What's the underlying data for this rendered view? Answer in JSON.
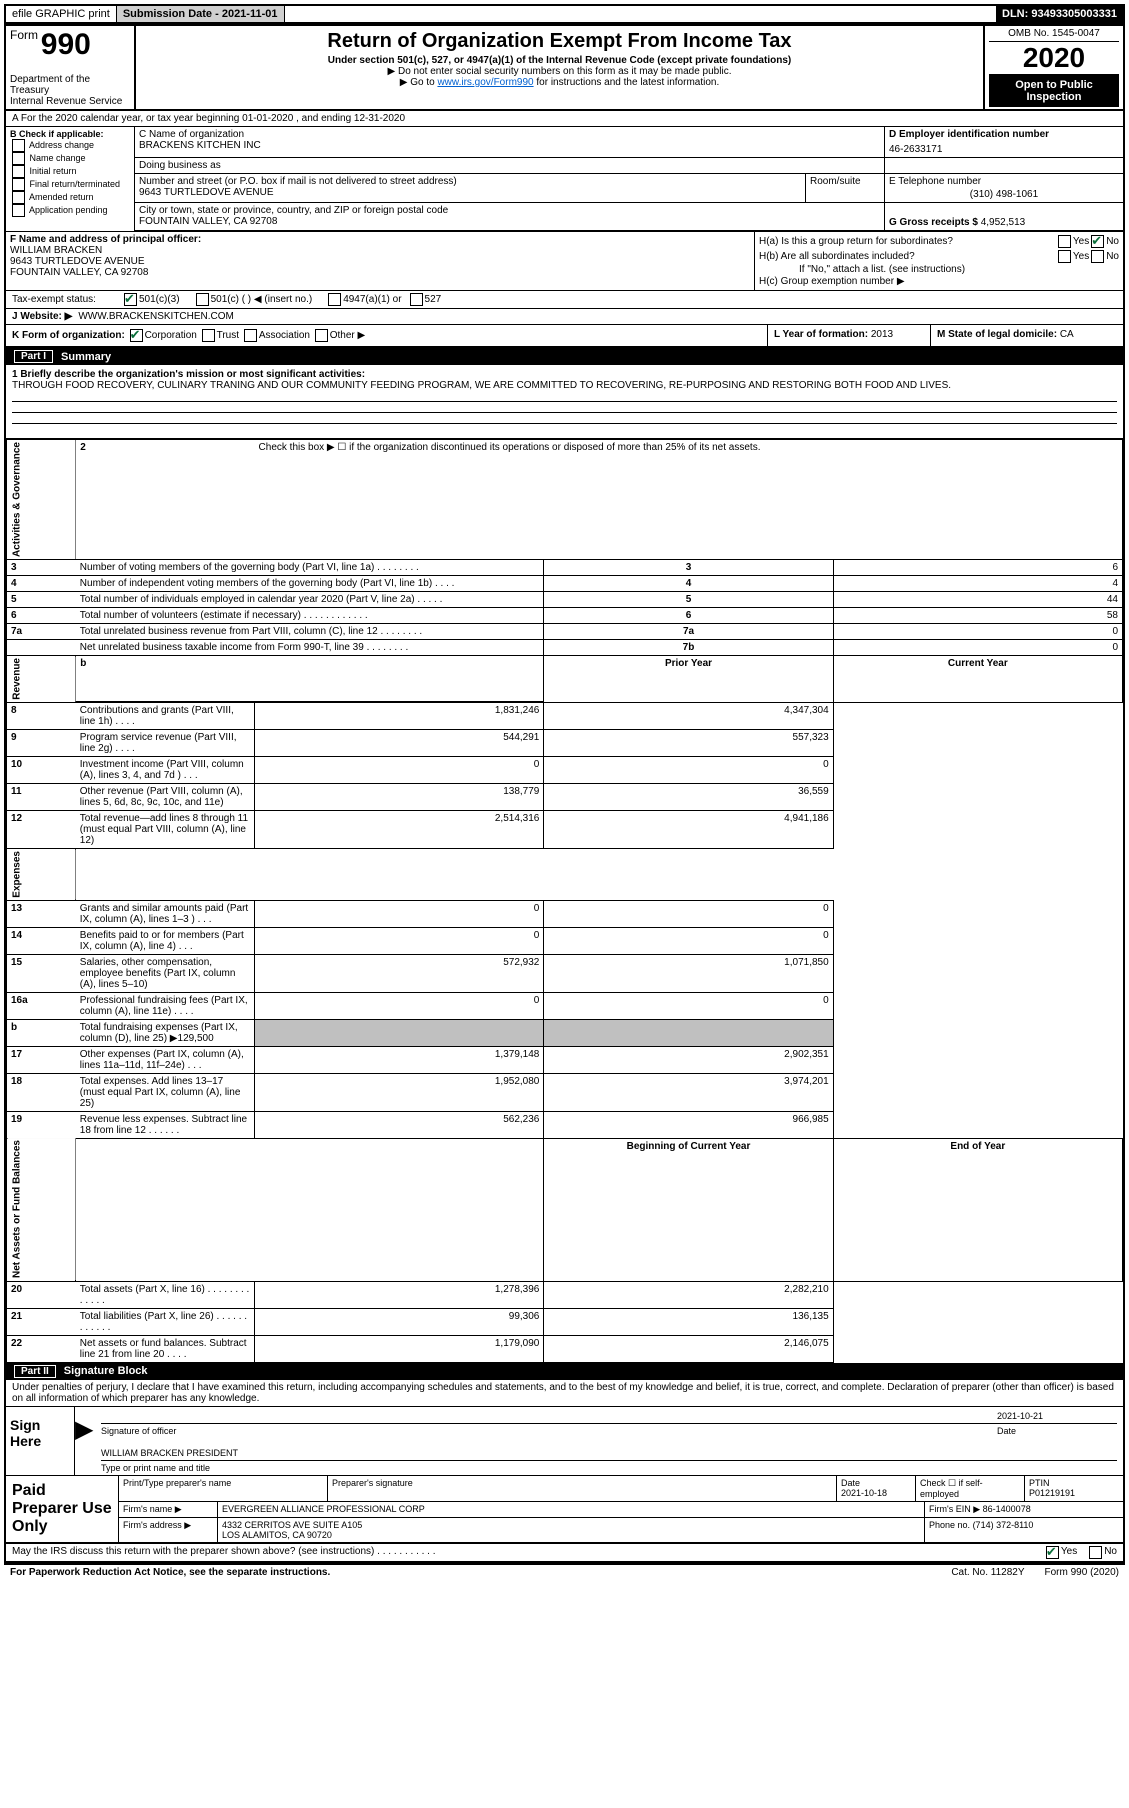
{
  "topbar": {
    "efile": "efile GRAPHIC print",
    "submission_label": "Submission Date - 2021-11-01",
    "dln": "DLN: 93493305003331"
  },
  "header": {
    "form_label": "Form",
    "form_number": "990",
    "dept": "Department of the Treasury\nInternal Revenue Service",
    "title": "Return of Organization Exempt From Income Tax",
    "subtitle": "Under section 501(c), 527, or 4947(a)(1) of the Internal Revenue Code (except private foundations)",
    "note1": "▶ Do not enter social security numbers on this form as it may be made public.",
    "note2_prefix": "▶ Go to ",
    "note2_link": "www.irs.gov/Form990",
    "note2_suffix": " for instructions and the latest information.",
    "omb": "OMB No. 1545-0047",
    "year": "2020",
    "open_public": "Open to Public Inspection"
  },
  "section_a": "A For the 2020 calendar year, or tax year beginning 01-01-2020   , and ending 12-31-2020",
  "col_b": {
    "label": "B Check if applicable:",
    "items": [
      "Address change",
      "Name change",
      "Initial return",
      "Final return/terminated",
      "Amended return",
      "Application pending"
    ]
  },
  "org": {
    "c_label": "C Name of organization",
    "name": "BRACKENS KITCHEN INC",
    "dba_label": "Doing business as",
    "addr_label": "Number and street (or P.O. box if mail is not delivered to street address)",
    "addr": "9643 TURTLEDOVE AVENUE",
    "room_label": "Room/suite",
    "city_label": "City or town, state or province, country, and ZIP or foreign postal code",
    "city": "FOUNTAIN VALLEY, CA  92708"
  },
  "ein": {
    "label": "D Employer identification number",
    "value": "46-2633171"
  },
  "phone": {
    "label": "E Telephone number",
    "value": "(310) 498-1061"
  },
  "gross": {
    "label": "G Gross receipts $",
    "value": "4,952,513"
  },
  "officer": {
    "label": "F Name and address of principal officer:",
    "name": "WILLIAM BRACKEN",
    "addr1": "9643 TURTLEDOVE AVENUE",
    "addr2": "FOUNTAIN VALLEY, CA  92708"
  },
  "h": {
    "a_label": "H(a)  Is this a group return for subordinates?",
    "b_label": "H(b)  Are all subordinates included?",
    "b_note": "If \"No,\" attach a list. (see instructions)",
    "c_label": "H(c)  Group exemption number ▶",
    "yes": "Yes",
    "no": "No"
  },
  "tax_status": {
    "label": "Tax-exempt status:",
    "opt1": "501(c)(3)",
    "opt2": "501(c) (  ) ◀ (insert no.)",
    "opt3": "4947(a)(1) or",
    "opt4": "527"
  },
  "website": {
    "label": "J   Website: ▶",
    "value": "WWW.BRACKENSKITCHEN.COM"
  },
  "k": {
    "label": "K Form of organization:",
    "opt1": "Corporation",
    "opt2": "Trust",
    "opt3": "Association",
    "opt4": "Other ▶",
    "l_label": "L Year of formation:",
    "l_value": "2013",
    "m_label": "M State of legal domicile:",
    "m_value": "CA"
  },
  "parts": {
    "p1": "Part I",
    "p1_title": "Summary",
    "p2": "Part II",
    "p2_title": "Signature Block"
  },
  "mission": {
    "q1": "1   Briefly describe the organization's mission or most significant activities:",
    "text": "THROUGH FOOD RECOVERY, CULINARY TRANING AND OUR COMMUNITY FEEDING PROGRAM, WE ARE COMMITTED TO RECOVERING, RE-PURPOSING AND RESTORING BOTH FOOD AND LIVES."
  },
  "summary": {
    "side_labels": [
      "Activities & Governance",
      "Revenue",
      "Expenses",
      "Net Assets or Fund Balances"
    ],
    "line2": "Check this box ▶ ☐  if the organization discontinued its operations or disposed of more than 25% of its net assets.",
    "rows_ag": [
      {
        "num": "3",
        "desc": "Number of voting members of the governing body (Part VI, line 1a)  .   .   .   .   .   .   .   .",
        "box": "3",
        "val": "6"
      },
      {
        "num": "4",
        "desc": "Number of independent voting members of the governing body (Part VI, line 1b)   .   .   .   .",
        "box": "4",
        "val": "4"
      },
      {
        "num": "5",
        "desc": "Total number of individuals employed in calendar year 2020 (Part V, line 2a)  .   .   .   .   .",
        "box": "5",
        "val": "44"
      },
      {
        "num": "6",
        "desc": "Total number of volunteers (estimate if necessary)    .   .   .   .   .   .   .   .   .   .   .   .",
        "box": "6",
        "val": "58"
      },
      {
        "num": "7a",
        "desc": "Total unrelated business revenue from Part VIII, column (C), line 12  .   .   .   .   .   .   .   .",
        "box": "7a",
        "val": "0"
      },
      {
        "num": "",
        "desc": "Net unrelated business taxable income from Form 990-T, line 39    .   .   .   .   .   .   .   .",
        "box": "7b",
        "val": "0"
      }
    ],
    "hdr_b": "b",
    "hdr_prior": "Prior Year",
    "hdr_current": "Current Year",
    "rows_rev": [
      {
        "num": "8",
        "desc": "Contributions and grants (Part VIII, line 1h)  .   .   .   .",
        "prior": "1,831,246",
        "curr": "4,347,304"
      },
      {
        "num": "9",
        "desc": "Program service revenue (Part VIII, line 2g)  .   .   .   .",
        "prior": "544,291",
        "curr": "557,323"
      },
      {
        "num": "10",
        "desc": "Investment income (Part VIII, column (A), lines 3, 4, and 7d )   .   .   .",
        "prior": "0",
        "curr": "0"
      },
      {
        "num": "11",
        "desc": "Other revenue (Part VIII, column (A), lines 5, 6d, 8c, 9c, 10c, and 11e)",
        "prior": "138,779",
        "curr": "36,559"
      },
      {
        "num": "12",
        "desc": "Total revenue—add lines 8 through 11 (must equal Part VIII, column (A), line 12)",
        "prior": "2,514,316",
        "curr": "4,941,186"
      }
    ],
    "rows_exp": [
      {
        "num": "13",
        "desc": "Grants and similar amounts paid (Part IX, column (A), lines 1–3 )  .   .   .",
        "prior": "0",
        "curr": "0"
      },
      {
        "num": "14",
        "desc": "Benefits paid to or for members (Part IX, column (A), line 4)  .   .   .",
        "prior": "0",
        "curr": "0"
      },
      {
        "num": "15",
        "desc": "Salaries, other compensation, employee benefits (Part IX, column (A), lines 5–10)",
        "prior": "572,932",
        "curr": "1,071,850"
      },
      {
        "num": "16a",
        "desc": "Professional fundraising fees (Part IX, column (A), line 11e)  .   .   .   .",
        "prior": "0",
        "curr": "0"
      },
      {
        "num": "b",
        "desc": "Total fundraising expenses (Part IX, column (D), line 25) ▶129,500",
        "prior": "shaded",
        "curr": "shaded"
      },
      {
        "num": "17",
        "desc": "Other expenses (Part IX, column (A), lines 11a–11d, 11f–24e)  .   .   .",
        "prior": "1,379,148",
        "curr": "2,902,351"
      },
      {
        "num": "18",
        "desc": "Total expenses. Add lines 13–17 (must equal Part IX, column (A), line 25)",
        "prior": "1,952,080",
        "curr": "3,974,201"
      },
      {
        "num": "19",
        "desc": "Revenue less expenses. Subtract line 18 from line 12 .   .   .   .   .   .",
        "prior": "562,236",
        "curr": "966,985"
      }
    ],
    "hdr_beg": "Beginning of Current Year",
    "hdr_end": "End of Year",
    "rows_net": [
      {
        "num": "20",
        "desc": "Total assets (Part X, line 16)  .   .   .   .   .   .   .   .   .   .   .   .   .",
        "prior": "1,278,396",
        "curr": "2,282,210"
      },
      {
        "num": "21",
        "desc": "Total liabilities (Part X, line 26)  .   .   .   .   .   .   .   .   .   .   .   .",
        "prior": "99,306",
        "curr": "136,135"
      },
      {
        "num": "22",
        "desc": "Net assets or fund balances. Subtract line 21 from line 20  .   .   .   .",
        "prior": "1,179,090",
        "curr": "2,146,075"
      }
    ]
  },
  "sig": {
    "text": "Under penalties of perjury, I declare that I have examined this return, including accompanying schedules and statements, and to the best of my knowledge and belief, it is true, correct, and complete. Declaration of preparer (other than officer) is based on all information of which preparer has any knowledge.",
    "sign_here": "Sign Here",
    "arrow_big": "▶",
    "sig_officer": "Signature of officer",
    "date_label": "Date",
    "date_val": "2021-10-21",
    "name_title": "WILLIAM BRACKEN  PRESIDENT",
    "type_name": "Type or print name and title"
  },
  "paid": {
    "label": "Paid Preparer Use Only",
    "print_name": "Print/Type preparer's name",
    "prep_sig": "Preparer's signature",
    "date_label": "Date",
    "date_val": "2021-10-18",
    "check_label": "Check ☐ if self-employed",
    "ptin_label": "PTIN",
    "ptin_val": "P01219191",
    "firm_name_label": "Firm's name     ▶",
    "firm_name": "EVERGREEN ALLIANCE PROFESSIONAL CORP",
    "firm_ein_label": "Firm's EIN ▶",
    "firm_ein": "86-1400078",
    "firm_addr_label": "Firm's address ▶",
    "firm_addr1": "4332 CERRITOS AVE SUITE A105",
    "firm_addr2": "LOS ALAMITOS, CA  90720",
    "phone_label": "Phone no.",
    "phone": "(714) 372-8110"
  },
  "irs_discuss": {
    "text": "May the IRS discuss this return with the preparer shown above? (see instructions)   .   .   .   .   .   .   .   .   .   .   .",
    "yes": "Yes",
    "no": "No"
  },
  "footer": {
    "left": "For Paperwork Reduction Act Notice, see the separate instructions.",
    "mid": "Cat. No. 11282Y",
    "right": "Form 990 (2020)"
  }
}
